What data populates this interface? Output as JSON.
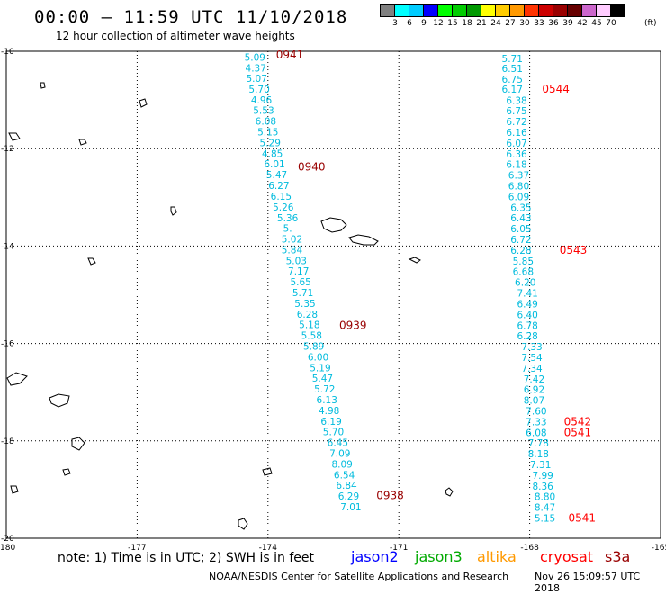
{
  "header": {
    "title": "00:00 – 11:59 UTC 11/10/2018",
    "subtitle": "12 hour collection of altimeter wave heights"
  },
  "legend": {
    "colors": [
      "#808080",
      "#00ffff",
      "#00ccff",
      "#0000ff",
      "#00ff00",
      "#00cc00",
      "#009900",
      "#ffff00",
      "#ffcc00",
      "#ff9900",
      "#ff3300",
      "#cc0000",
      "#990000",
      "#660000",
      "#cc66cc",
      "#ffccff",
      "#000000"
    ],
    "labels": [
      "3",
      "6",
      "9",
      "12",
      "15",
      "18",
      "21",
      "24",
      "27",
      "30",
      "33",
      "36",
      "39",
      "42",
      "45",
      "70"
    ],
    "unit": "(ft)"
  },
  "axes": {
    "x_ticks": [
      -180,
      -177,
      -174,
      -171,
      -168,
      -165
    ],
    "y_ticks": [
      -10,
      -12,
      -14,
      -16,
      -18,
      -20
    ],
    "x_labels": [
      "-180",
      "-177",
      "-174",
      "-171",
      "-168",
      "-165"
    ],
    "y_labels": [
      "-10",
      "-12",
      "-14",
      "-16",
      "-18",
      "-20"
    ],
    "xlim": [
      -180,
      -165
    ],
    "ylim": [
      -20,
      -10
    ]
  },
  "tracks": [
    {
      "name": "track-left",
      "color": "#00bbdd",
      "points": [
        {
          "lon": -174.3,
          "lat": -10.05,
          "value": "5.09"
        },
        {
          "lon": -174.28,
          "lat": -10.27,
          "value": "4.37"
        },
        {
          "lon": -174.26,
          "lat": -10.48,
          "value": "5.07"
        },
        {
          "lon": -174.2,
          "lat": -10.7,
          "value": "5.70"
        },
        {
          "lon": -174.15,
          "lat": -10.92,
          "value": "4.96"
        },
        {
          "lon": -174.1,
          "lat": -11.14,
          "value": "5.53"
        },
        {
          "lon": -174.05,
          "lat": -11.36,
          "value": "6.08"
        },
        {
          "lon": -174.0,
          "lat": -11.58,
          "value": "5.15"
        },
        {
          "lon": -173.95,
          "lat": -11.8,
          "value": "5.29"
        },
        {
          "lon": -173.9,
          "lat": -12.02,
          "value": "4.85"
        },
        {
          "lon": -173.85,
          "lat": -12.24,
          "value": "6.01"
        },
        {
          "lon": -173.8,
          "lat": -12.46,
          "value": "5.47"
        },
        {
          "lon": -173.75,
          "lat": -12.68,
          "value": "6.27"
        },
        {
          "lon": -173.7,
          "lat": -12.9,
          "value": "6.15"
        },
        {
          "lon": -173.65,
          "lat": -13.12,
          "value": "5.26"
        },
        {
          "lon": -173.55,
          "lat": -13.35,
          "value": "5.36"
        },
        {
          "lon": -173.55,
          "lat": -13.56,
          "value": "5."
        },
        {
          "lon": -173.45,
          "lat": -13.78,
          "value": "5.02"
        },
        {
          "lon": -173.45,
          "lat": -14.0,
          "value": "5.84"
        },
        {
          "lon": -173.35,
          "lat": -14.22,
          "value": "5.03"
        },
        {
          "lon": -173.3,
          "lat": -14.44,
          "value": "7.17"
        },
        {
          "lon": -173.25,
          "lat": -14.66,
          "value": "5.65"
        },
        {
          "lon": -173.2,
          "lat": -14.88,
          "value": "5.71"
        },
        {
          "lon": -173.15,
          "lat": -15.1,
          "value": "5.35"
        },
        {
          "lon": -173.1,
          "lat": -15.32,
          "value": "6.28"
        },
        {
          "lon": -173.05,
          "lat": -15.54,
          "value": "5.18"
        },
        {
          "lon": -173.0,
          "lat": -15.76,
          "value": "5.58"
        },
        {
          "lon": -172.95,
          "lat": -15.98,
          "value": "5.89"
        },
        {
          "lon": -172.85,
          "lat": -16.2,
          "value": "6.00"
        },
        {
          "lon": -172.8,
          "lat": -16.42,
          "value": "5.19"
        },
        {
          "lon": -172.75,
          "lat": -16.64,
          "value": "5.47"
        },
        {
          "lon": -172.7,
          "lat": -16.86,
          "value": "5.72"
        },
        {
          "lon": -172.65,
          "lat": -17.08,
          "value": "6.13"
        },
        {
          "lon": -172.6,
          "lat": -17.3,
          "value": "4.98"
        },
        {
          "lon": -172.55,
          "lat": -17.52,
          "value": "6.19"
        },
        {
          "lon": -172.5,
          "lat": -17.74,
          "value": "5.70"
        },
        {
          "lon": -172.4,
          "lat": -17.96,
          "value": "6.45"
        },
        {
          "lon": -172.35,
          "lat": -18.18,
          "value": "7.09"
        },
        {
          "lon": -172.3,
          "lat": -18.4,
          "value": "8.09"
        },
        {
          "lon": -172.25,
          "lat": -18.62,
          "value": "6.54"
        },
        {
          "lon": -172.2,
          "lat": -18.84,
          "value": "6.84"
        },
        {
          "lon": -172.15,
          "lat": -19.06,
          "value": "6.29"
        },
        {
          "lon": -172.1,
          "lat": -19.28,
          "value": "7.01"
        }
      ],
      "times": [
        {
          "lon": -173.5,
          "lat": -10.0,
          "value": "0941"
        },
        {
          "lon": -173.0,
          "lat": -12.3,
          "value": "0940"
        },
        {
          "lon": -172.05,
          "lat": -15.55,
          "value": "0939"
        },
        {
          "lon": -171.2,
          "lat": -19.05,
          "value": "0938"
        }
      ]
    },
    {
      "name": "track-right",
      "color": "#00bbdd",
      "points": [
        {
          "lon": -168.4,
          "lat": -10.07,
          "value": "5.71"
        },
        {
          "lon": -168.4,
          "lat": -10.28,
          "value": "6.51"
        },
        {
          "lon": -168.4,
          "lat": -10.5,
          "value": "6.75"
        },
        {
          "lon": -168.4,
          "lat": -10.7,
          "value": "6.17"
        },
        {
          "lon": -168.3,
          "lat": -10.93,
          "value": "6.38"
        },
        {
          "lon": -168.3,
          "lat": -11.15,
          "value": "6.75"
        },
        {
          "lon": -168.3,
          "lat": -11.37,
          "value": "6.72"
        },
        {
          "lon": -168.3,
          "lat": -11.59,
          "value": "6.16"
        },
        {
          "lon": -168.3,
          "lat": -11.81,
          "value": "6.07"
        },
        {
          "lon": -168.3,
          "lat": -12.03,
          "value": "6.36"
        },
        {
          "lon": -168.3,
          "lat": -12.25,
          "value": "6.18"
        },
        {
          "lon": -168.25,
          "lat": -12.47,
          "value": "6.37"
        },
        {
          "lon": -168.25,
          "lat": -12.69,
          "value": "6.80"
        },
        {
          "lon": -168.25,
          "lat": -12.91,
          "value": "6.09"
        },
        {
          "lon": -168.2,
          "lat": -13.13,
          "value": "6.35"
        },
        {
          "lon": -168.2,
          "lat": -13.35,
          "value": "6.43"
        },
        {
          "lon": -168.2,
          "lat": -13.57,
          "value": "6.05"
        },
        {
          "lon": -168.2,
          "lat": -13.79,
          "value": "6.72"
        },
        {
          "lon": -168.2,
          "lat": -14.01,
          "value": "6.28"
        },
        {
          "lon": -168.15,
          "lat": -14.23,
          "value": "5.85"
        },
        {
          "lon": -168.15,
          "lat": -14.45,
          "value": "6.68"
        },
        {
          "lon": -168.1,
          "lat": -14.67,
          "value": "6.20"
        },
        {
          "lon": -168.05,
          "lat": -14.89,
          "value": "7.41"
        },
        {
          "lon": -168.05,
          "lat": -15.11,
          "value": "6.49"
        },
        {
          "lon": -168.05,
          "lat": -15.33,
          "value": "6.40"
        },
        {
          "lon": -168.05,
          "lat": -15.55,
          "value": "6.78"
        },
        {
          "lon": -168.05,
          "lat": -15.77,
          "value": "6.28"
        },
        {
          "lon": -167.95,
          "lat": -15.99,
          "value": "7.33"
        },
        {
          "lon": -167.95,
          "lat": -16.21,
          "value": "7.54"
        },
        {
          "lon": -167.95,
          "lat": -16.43,
          "value": "7.34"
        },
        {
          "lon": -167.9,
          "lat": -16.65,
          "value": "7.42"
        },
        {
          "lon": -167.9,
          "lat": -16.87,
          "value": "6.92"
        },
        {
          "lon": -167.9,
          "lat": -17.09,
          "value": "8.07"
        },
        {
          "lon": -167.85,
          "lat": -17.31,
          "value": "7.60"
        },
        {
          "lon": -167.85,
          "lat": -17.53,
          "value": "7.33"
        },
        {
          "lon": -167.85,
          "lat": -17.75,
          "value": "6.08"
        },
        {
          "lon": -167.8,
          "lat": -17.97,
          "value": "7.78"
        },
        {
          "lon": -167.8,
          "lat": -18.19,
          "value": "8.18"
        },
        {
          "lon": -167.75,
          "lat": -18.41,
          "value": "7.31"
        },
        {
          "lon": -167.7,
          "lat": -18.63,
          "value": "7.99"
        },
        {
          "lon": -167.7,
          "lat": -18.85,
          "value": "8.36"
        },
        {
          "lon": -167.65,
          "lat": -19.07,
          "value": "8.80"
        },
        {
          "lon": -167.65,
          "lat": -19.29,
          "value": "8.47"
        },
        {
          "lon": -167.65,
          "lat": -19.51,
          "value": "5.15"
        }
      ],
      "times": [
        {
          "lon": -167.4,
          "lat": -10.7,
          "value": "0544"
        },
        {
          "lon": -167.0,
          "lat": -14.01,
          "value": "0543"
        },
        {
          "lon": -166.9,
          "lat": -17.53,
          "value": "0542"
        },
        {
          "lon": -166.9,
          "lat": -17.75,
          "value": "0541"
        },
        {
          "lon": -166.8,
          "lat": -19.51,
          "value": "0541"
        }
      ]
    }
  ],
  "footer": {
    "note": "note: 1) Time is in UTC; 2) SWH is in feet",
    "satellites": [
      {
        "name": "jason2",
        "color": "#0000ff"
      },
      {
        "name": "jason3",
        "color": "#00aa00"
      },
      {
        "name": "altika",
        "color": "#ff9900"
      },
      {
        "name": "cryosat",
        "color": "#ff0000"
      },
      {
        "name": "s3a",
        "color": "#990000"
      }
    ],
    "credit": "NOAA/NESDIS Center for Satellite Applications and Research",
    "timestamp": "Nov 26 15:09:57 UTC 2018"
  }
}
